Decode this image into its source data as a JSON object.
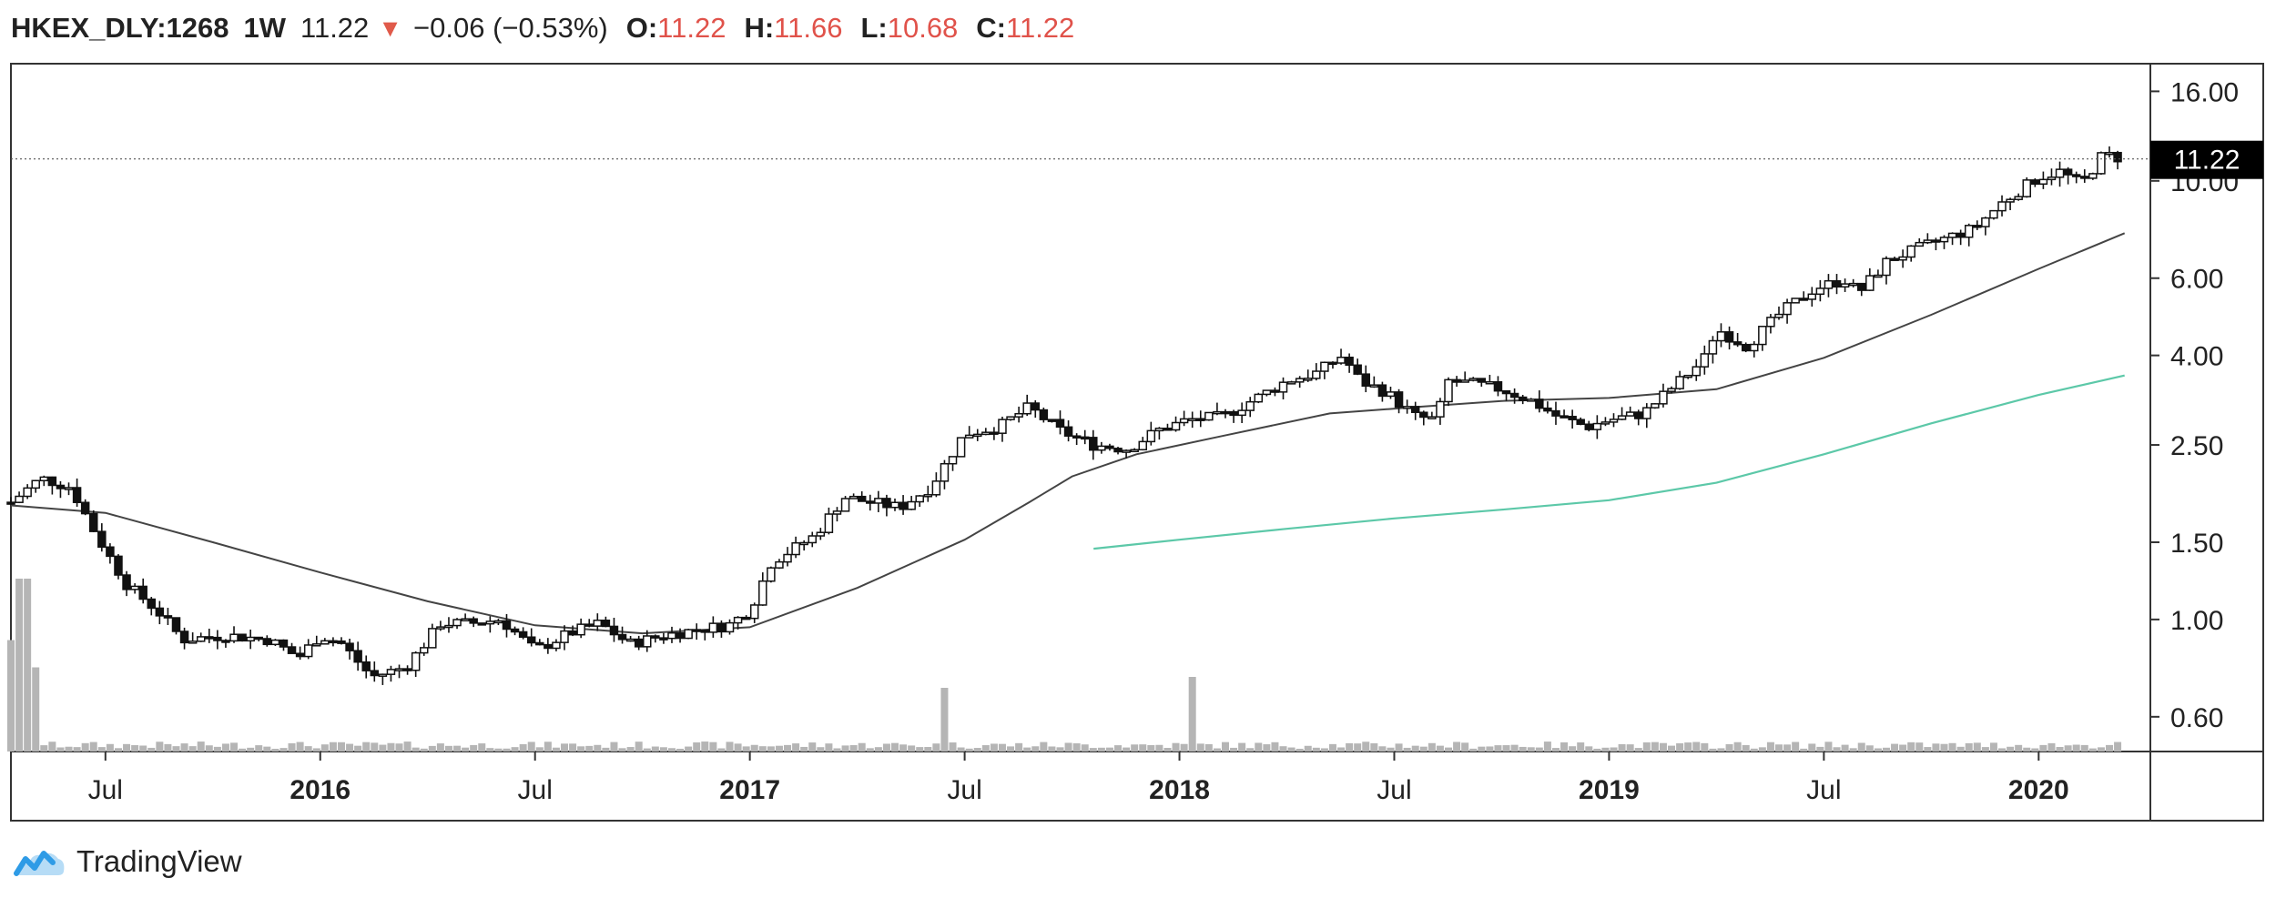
{
  "header": {
    "symbol": "HKEX_DLY:1268",
    "interval": "1W",
    "last": "11.22",
    "change": "−0.06 (−0.53%)",
    "open_label": "O:",
    "open": "11.22",
    "high_label": "H:",
    "high": "11.66",
    "low_label": "L:",
    "low": "10.68",
    "close_label": "C:",
    "close": "11.22"
  },
  "brand": {
    "name": "TradingView"
  },
  "colors": {
    "down": "#e0524a",
    "ma_short": "#444444",
    "ma_long": "#5cc8a8",
    "volume": "#b5b5b5"
  },
  "chart_data": {
    "type": "candlestick",
    "scale": "log",
    "y_ticks": [
      0.6,
      1.0,
      1.5,
      2.5,
      4.0,
      6.0,
      10.0,
      16.0
    ],
    "y_tick_labels": [
      "0.60",
      "1.00",
      "1.50",
      "2.50",
      "4.00",
      "6.00",
      "10.00",
      "16.00"
    ],
    "ylim": [
      0.5,
      18.5
    ],
    "x_ticks": [
      "Jul",
      "2016",
      "Jul",
      "2017",
      "Jul",
      "2018",
      "Jul",
      "2019",
      "Jul",
      "2020"
    ],
    "x_tick_positions": [
      2015.5,
      2016.0,
      2016.5,
      2017.0,
      2017.5,
      2018.0,
      2018.5,
      2019.0,
      2019.5,
      2020.0
    ],
    "xlim": [
      2015.28,
      2020.26
    ],
    "last_price": 11.22,
    "last_price_label": "11.22",
    "price_anchors": [
      [
        2015.28,
        1.85
      ],
      [
        2015.35,
        2.1
      ],
      [
        2015.42,
        2.0
      ],
      [
        2015.48,
        1.55
      ],
      [
        2015.55,
        1.2
      ],
      [
        2015.62,
        1.05
      ],
      [
        2015.68,
        0.9
      ],
      [
        2015.78,
        0.92
      ],
      [
        2015.88,
        0.9
      ],
      [
        2015.95,
        0.82
      ],
      [
        2016.0,
        0.92
      ],
      [
        2016.05,
        0.88
      ],
      [
        2016.12,
        0.74
      ],
      [
        2016.2,
        0.78
      ],
      [
        2016.28,
        0.98
      ],
      [
        2016.35,
        0.98
      ],
      [
        2016.42,
        1.0
      ],
      [
        2016.5,
        0.85
      ],
      [
        2016.58,
        0.93
      ],
      [
        2016.65,
        0.98
      ],
      [
        2016.72,
        0.88
      ],
      [
        2016.8,
        0.92
      ],
      [
        2016.88,
        0.95
      ],
      [
        2016.95,
        0.97
      ],
      [
        2017.0,
        1.05
      ],
      [
        2017.05,
        1.35
      ],
      [
        2017.15,
        1.55
      ],
      [
        2017.22,
        1.9
      ],
      [
        2017.28,
        1.85
      ],
      [
        2017.35,
        1.8
      ],
      [
        2017.42,
        2.0
      ],
      [
        2017.5,
        2.65
      ],
      [
        2017.58,
        2.75
      ],
      [
        2017.65,
        3.05
      ],
      [
        2017.72,
        2.7
      ],
      [
        2017.8,
        2.5
      ],
      [
        2017.88,
        2.45
      ],
      [
        2017.95,
        2.7
      ],
      [
        2018.02,
        2.85
      ],
      [
        2018.1,
        2.9
      ],
      [
        2018.18,
        3.2
      ],
      [
        2018.25,
        3.5
      ],
      [
        2018.32,
        3.65
      ],
      [
        2018.38,
        4.0
      ],
      [
        2018.42,
        3.5
      ],
      [
        2018.48,
        3.3
      ],
      [
        2018.55,
        2.9
      ],
      [
        2018.6,
        2.85
      ],
      [
        2018.62,
        3.5
      ],
      [
        2018.68,
        3.45
      ],
      [
        2018.75,
        3.35
      ],
      [
        2018.82,
        3.15
      ],
      [
        2018.88,
        2.9
      ],
      [
        2018.95,
        2.75
      ],
      [
        2019.0,
        2.85
      ],
      [
        2019.08,
        2.95
      ],
      [
        2019.15,
        3.4
      ],
      [
        2019.22,
        3.9
      ],
      [
        2019.25,
        4.6
      ],
      [
        2019.32,
        4.2
      ],
      [
        2019.4,
        5.0
      ],
      [
        2019.48,
        5.7
      ],
      [
        2019.55,
        5.95
      ],
      [
        2019.58,
        5.55
      ],
      [
        2019.65,
        6.6
      ],
      [
        2019.75,
        7.2
      ],
      [
        2019.85,
        7.8
      ],
      [
        2019.92,
        9.0
      ],
      [
        2020.0,
        10.2
      ],
      [
        2020.05,
        10.5
      ],
      [
        2020.1,
        9.8
      ],
      [
        2020.15,
        11.5
      ],
      [
        2020.2,
        11.22
      ]
    ],
    "ma_short": [
      [
        2015.28,
        1.82
      ],
      [
        2015.5,
        1.75
      ],
      [
        2015.75,
        1.5
      ],
      [
        2016.0,
        1.28
      ],
      [
        2016.25,
        1.1
      ],
      [
        2016.5,
        0.97
      ],
      [
        2016.75,
        0.93
      ],
      [
        2017.0,
        0.96
      ],
      [
        2017.25,
        1.18
      ],
      [
        2017.5,
        1.52
      ],
      [
        2017.65,
        1.85
      ],
      [
        2017.75,
        2.12
      ],
      [
        2017.9,
        2.38
      ],
      [
        2018.1,
        2.62
      ],
      [
        2018.35,
        2.95
      ],
      [
        2018.55,
        3.05
      ],
      [
        2018.75,
        3.15
      ],
      [
        2019.0,
        3.2
      ],
      [
        2019.25,
        3.35
      ],
      [
        2019.5,
        3.95
      ],
      [
        2019.75,
        4.95
      ],
      [
        2020.0,
        6.3
      ],
      [
        2020.2,
        7.6
      ]
    ],
    "ma_long": [
      [
        2017.8,
        1.45
      ],
      [
        2018.0,
        1.52
      ],
      [
        2018.25,
        1.61
      ],
      [
        2018.5,
        1.7
      ],
      [
        2018.75,
        1.78
      ],
      [
        2019.0,
        1.87
      ],
      [
        2019.25,
        2.05
      ],
      [
        2019.5,
        2.38
      ],
      [
        2019.75,
        2.8
      ],
      [
        2020.0,
        3.25
      ],
      [
        2020.2,
        3.6
      ]
    ],
    "volume_spikes": [
      [
        2015.29,
        0.55
      ],
      [
        2015.31,
        1.0
      ],
      [
        2015.34,
        0.35
      ],
      [
        2017.45,
        0.2
      ],
      [
        2018.03,
        0.28
      ]
    ]
  }
}
